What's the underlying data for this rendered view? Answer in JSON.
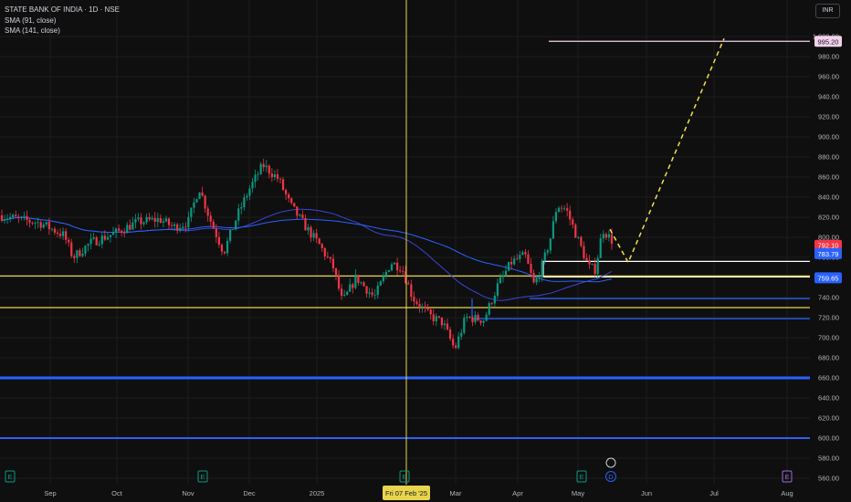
{
  "legend": {
    "title": "STATE BANK OF INDIA · 1D · NSE",
    "sma1": "SMA (91, close)",
    "sma2": "SMA (141, close)"
  },
  "currency_button": "INR",
  "chart_data": {
    "type": "candlestick",
    "y_axis": {
      "min": 555,
      "max": 1005,
      "ticks": [
        560,
        580,
        600,
        620,
        640,
        660,
        680,
        700,
        720,
        740,
        760,
        780,
        800,
        820,
        840,
        860,
        880,
        900,
        920,
        940,
        960,
        980,
        1000
      ],
      "top_tick_label": "1,000.00"
    },
    "x_axis": {
      "labels": [
        "Sep",
        "Oct",
        "Nov",
        "Dec",
        "2025",
        "Mar",
        "Apr",
        "May",
        "Jun",
        "Jul",
        "Aug"
      ],
      "crosshair_label": "Fri 07 Feb '25"
    },
    "price_labels": [
      {
        "value": 995.2,
        "text": "995.20",
        "bg": "#f2d1ea",
        "color": "#131722"
      },
      {
        "value": 792.1,
        "text": "792.10",
        "bg": "#f23645",
        "color": "#ffffff"
      },
      {
        "value": 783.79,
        "text": "783.79",
        "bg": "#2962ff",
        "color": "#ffffff"
      },
      {
        "value": 759.65,
        "text": "759.65",
        "bg": "#2962ff",
        "color": "#ffffff"
      }
    ],
    "horizontal_lines": [
      {
        "value": 995.2,
        "color": "#f2d1ea",
        "from_label": "May"
      },
      {
        "value": 776,
        "color": "#ffffff",
        "from_label": "Apr"
      },
      {
        "value": 760.5,
        "color": "#ffffff",
        "from_label": "Apr"
      },
      {
        "value": 761.5,
        "color": "#e8d44d"
      },
      {
        "value": 730,
        "color": "#e8d44d"
      },
      {
        "value": 739,
        "color": "#2962ff",
        "from_label": "Apr"
      },
      {
        "value": 719,
        "color": "#2962ff",
        "from_label": "Mar"
      },
      {
        "value": 660,
        "color": "#2962ff",
        "width": 3
      },
      {
        "value": 600,
        "color": "#2962ff",
        "width": 2
      }
    ],
    "projection": [
      {
        "x_label": "May",
        "y": 808
      },
      {
        "x_label": "Jun",
        "y": 775
      },
      {
        "x_label": "Jul",
        "y": 998
      }
    ],
    "bottom_markers": [
      "E",
      "E",
      "E",
      "E",
      "D",
      "E"
    ],
    "colors": {
      "up": "#089981",
      "down": "#f23645",
      "sma1": "#3b44d9",
      "sma2": "#2962ff",
      "crosshair": "#e8d44d"
    }
  }
}
